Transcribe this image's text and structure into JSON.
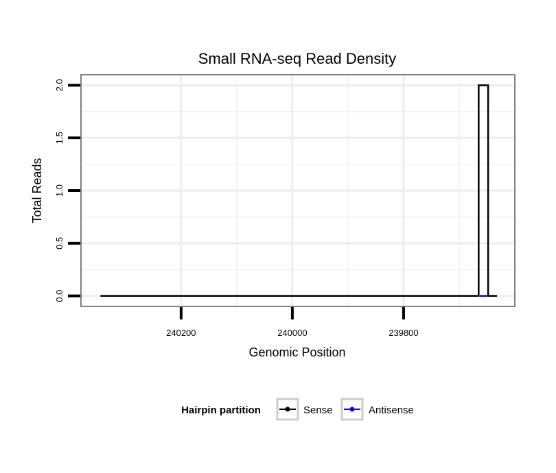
{
  "chart_data": {
    "type": "line",
    "title": "Small RNA-seq Read Density",
    "xlabel": "Genomic Position",
    "ylabel": "Total Reads",
    "x_reversed": true,
    "xlim": [
      240380,
      239600
    ],
    "ylim": [
      -0.1,
      2.1
    ],
    "x_ticks": [
      240200,
      240000,
      239800
    ],
    "x_tick_labels": [
      "240200",
      "240000",
      "239800"
    ],
    "y_ticks": [
      0.0,
      0.5,
      1.0,
      1.5,
      2.0
    ],
    "y_tick_labels": [
      "0.0",
      "0.5",
      "1.0",
      "1.5",
      "2.0"
    ],
    "grid": true,
    "legend": {
      "title": "Hairpin partition",
      "position": "bottom",
      "entries": [
        {
          "label": "Sense",
          "color": "#000000"
        },
        {
          "label": "Antisense",
          "color": "#0000ff"
        }
      ]
    },
    "series": [
      {
        "name": "Sense",
        "color": "#000000",
        "x": [
          240345,
          239665,
          239665,
          239648,
          239648,
          239632
        ],
        "y": [
          0,
          0,
          2,
          2,
          0,
          0
        ]
      },
      {
        "name": "Antisense",
        "color": "#0000ff",
        "x": [
          239663,
          239650
        ],
        "y": [
          0,
          0
        ]
      }
    ]
  }
}
